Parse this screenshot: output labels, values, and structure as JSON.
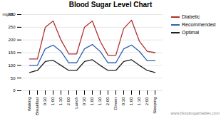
{
  "chart_data": {
    "type": "line",
    "title": "Blood Sugar Level Chart",
    "ylabel": "mg/dL",
    "categories": [
      "Waking",
      "Breakfast",
      "0:30",
      "1:00",
      "1:30",
      "2:00",
      "Lunch",
      "0:30",
      "1:00",
      "1:30",
      "2:00",
      "Dinner",
      "0:30",
      "1:00",
      "1:30",
      "2:00",
      "Sleeping"
    ],
    "series": [
      {
        "name": "Diabetic",
        "color": "#b03030",
        "values": [
          125,
          125,
          250,
          275,
          200,
          145,
          145,
          250,
          275,
          195,
          140,
          140,
          245,
          278,
          195,
          155,
          150
        ]
      },
      {
        "name": "Recommended",
        "color": "#3060b0",
        "values": [
          100,
          100,
          165,
          180,
          155,
          110,
          110,
          165,
          182,
          155,
          110,
          110,
          165,
          180,
          155,
          118,
          118
        ]
      },
      {
        "name": "Optimal",
        "color": "#202020",
        "values": [
          72,
          80,
          115,
          120,
          100,
          80,
          80,
          115,
          122,
          100,
          80,
          80,
          115,
          122,
          100,
          80,
          72
        ]
      }
    ],
    "ylim": [
      0,
      300
    ],
    "yticks": [
      0,
      50,
      100,
      150,
      200,
      250,
      300
    ],
    "grid": true,
    "legend": "right",
    "annotations": [
      "www.bloodsugarbattles.com"
    ]
  }
}
